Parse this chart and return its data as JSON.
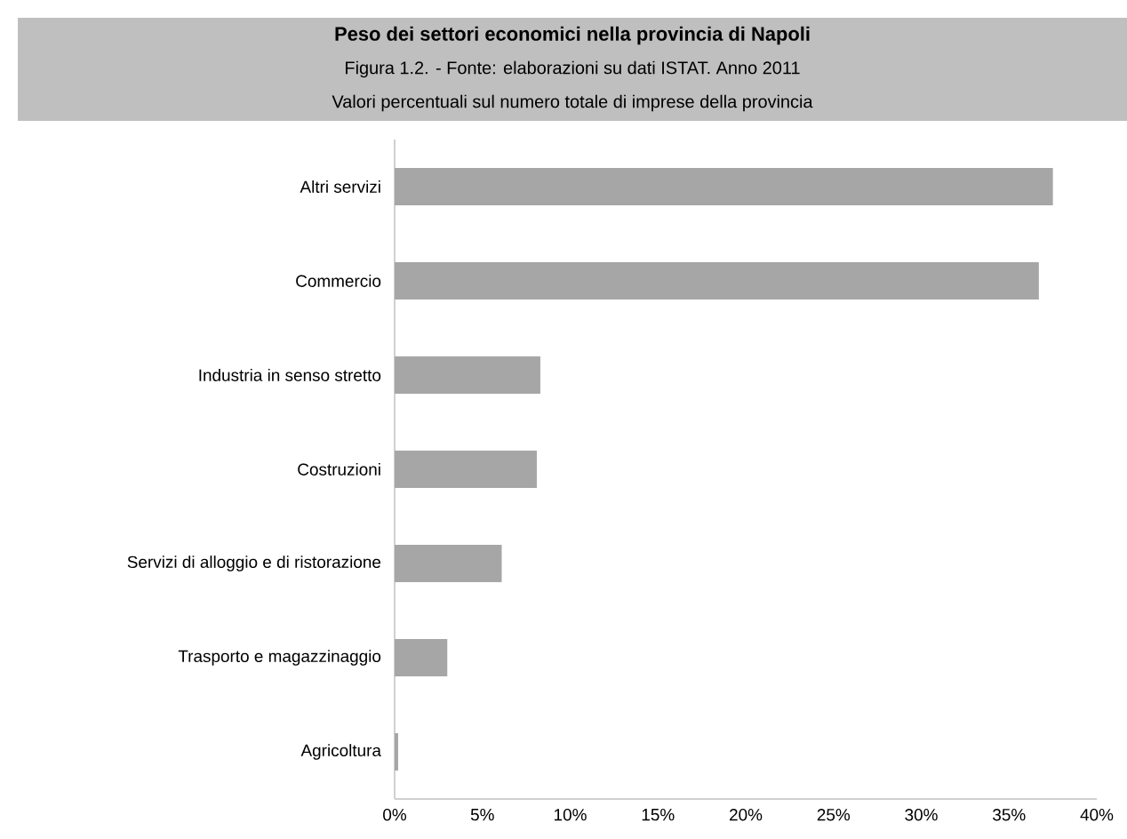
{
  "chart_data": {
    "type": "bar",
    "orientation": "horizontal",
    "title": "Peso dei settori economici nella provincia di Napoli",
    "subtitle": "Valori percentuali sul numero totale di imprese della provincia",
    "annotations": [
      "Figura 1.2. - Fonte: elaborazioni su dati ISTAT. Anno 2011"
    ],
    "categories": [
      "Altri servizi",
      "Commercio",
      "Industria in senso stretto",
      "Costruzioni",
      "Servizi di alloggio e di ristorazione",
      "Trasporto e magazzinaggio",
      "Agricoltura"
    ],
    "values": [
      37.5,
      36.7,
      8.3,
      8.1,
      6.1,
      3.0,
      0.2
    ],
    "color": "#a6a6a6",
    "xlim": [
      0,
      40
    ],
    "xticks": [
      {
        "value": 0,
        "label": "0%"
      },
      {
        "value": 5,
        "label": "5%"
      },
      {
        "value": 10,
        "label": "10%"
      },
      {
        "value": 15,
        "label": "15%"
      },
      {
        "value": 20,
        "label": "20%"
      },
      {
        "value": 25,
        "label": "25%"
      },
      {
        "value": 30,
        "label": "30%"
      },
      {
        "value": 35,
        "label": "35%"
      },
      {
        "value": 40,
        "label": "40%"
      }
    ]
  }
}
